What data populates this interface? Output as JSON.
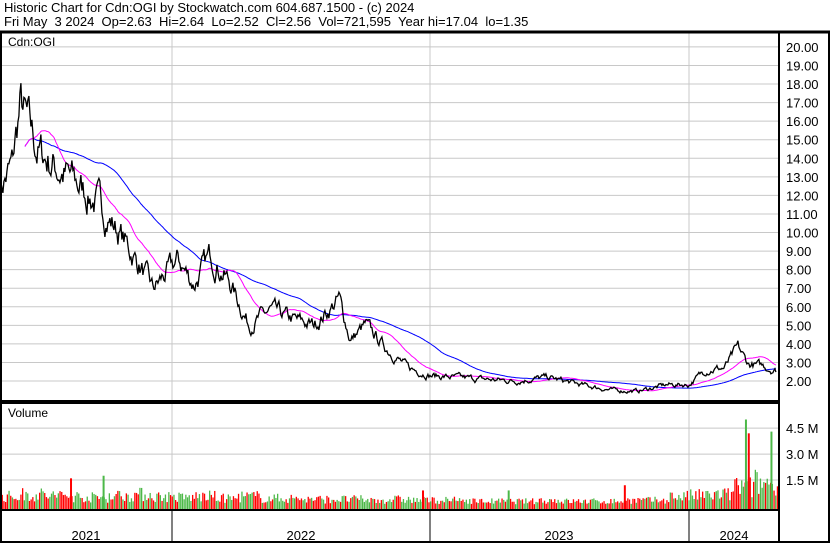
{
  "header": {
    "title": "Historic Chart for Cdn:OGI by Stockwatch.com 604.687.1500 - (c) 2024",
    "quote": "Fri May  3 2024  Op=2.63  Hi=2.64  Lo=2.52  Cl=2.56  Vol=721,595  Year hi=17.04  lo=1.35"
  },
  "colors": {
    "price": "#000000",
    "ma_short": "#ff00ff",
    "ma_long": "#0000ff",
    "vol_up": "#4cb848",
    "vol_down": "#ff0000",
    "grid": "#c8c8c8"
  },
  "chart_data": [
    {
      "type": "line",
      "title": "Cdn:OGI",
      "ylim": [
        1,
        21
      ],
      "yticks": [
        "2.00",
        "3.00",
        "4.00",
        "5.00",
        "6.00",
        "7.00",
        "8.00",
        "9.00",
        "10.00",
        "11.00",
        "12.00",
        "13.00",
        "14.00",
        "15.00",
        "16.00",
        "17.00",
        "18.00",
        "19.00",
        "20.00"
      ],
      "grid": true,
      "series": [
        {
          "x": [
            "2021-05-03",
            "2021-05-20",
            "2021-06-01",
            "2021-06-25",
            "2021-07-25",
            "2021-08-20",
            "2021-09-20",
            "2021-10-20",
            "2021-11-20",
            "2021-12-05",
            "2021-12-20",
            "2022-01-10",
            "2022-02-01",
            "2022-02-25",
            "2022-03-25",
            "2022-04-20",
            "2022-05-20",
            "2022-06-20",
            "2022-07-20",
            "2022-08-05",
            "2022-08-25",
            "2022-09-10",
            "2022-10-01",
            "2022-11-01",
            "2022-12-01",
            "2023-01-01",
            "2023-02-01",
            "2023-03-15",
            "2023-05-01",
            "2023-06-15",
            "2023-08-01",
            "2023-09-15",
            "2023-10-20",
            "2023-12-01",
            "2024-01-01",
            "2024-01-25",
            "2024-02-20",
            "2024-03-10",
            "2024-03-25",
            "2024-04-15",
            "2024-05-03"
          ],
          "values": [
            12.5,
            13.5,
            16.9,
            14.4,
            13.4,
            12.6,
            11.5,
            9.9,
            8.0,
            6.9,
            7.6,
            8.5,
            7.2,
            8.8,
            7.2,
            5.0,
            5.8,
            5.3,
            5.0,
            5.6,
            6.4,
            4.2,
            5.0,
            3.7,
            2.7,
            2.3,
            2.2,
            2.1,
            2.0,
            2.2,
            1.8,
            1.5,
            1.45,
            1.8,
            1.8,
            2.6,
            2.7,
            3.8,
            2.9,
            2.8,
            2.56
          ]
        }
      ],
      "moving_averages": [
        "short",
        "long"
      ]
    },
    {
      "type": "bar",
      "title": "Volume",
      "ylim": [
        0,
        5.5
      ],
      "yticks": [
        "1.5 M",
        "3.0 M",
        "4.5 M"
      ],
      "monthly_volume_millions": [
        0.5,
        0.6,
        0.55,
        0.5,
        0.45,
        0.55,
        0.6,
        0.5,
        0.45,
        0.5,
        0.4,
        0.5,
        0.4,
        0.4,
        0.35,
        0.35,
        0.35,
        0.3,
        0.35,
        0.3,
        0.3,
        0.3,
        0.25,
        0.25,
        0.25,
        0.3,
        0.25,
        0.25,
        0.25,
        0.3,
        0.3,
        0.5,
        0.55,
        0.6,
        1.0,
        1.2,
        0.7
      ],
      "spikes": [
        {
          "date": "2021-08-10",
          "value": 1.6
        },
        {
          "date": "2021-09-25",
          "value": 1.75
        },
        {
          "date": "2022-12-20",
          "value": 0.9
        },
        {
          "date": "2023-04-20",
          "value": 0.9
        },
        {
          "date": "2023-10-01",
          "value": 1.2
        },
        {
          "date": "2024-03-20",
          "value": 5.0
        },
        {
          "date": "2024-03-24",
          "value": 4.2
        },
        {
          "date": "2024-04-25",
          "value": 4.3
        }
      ]
    }
  ],
  "xaxis": {
    "labels": [
      "2021",
      "2022",
      "2023",
      "2024"
    ]
  }
}
